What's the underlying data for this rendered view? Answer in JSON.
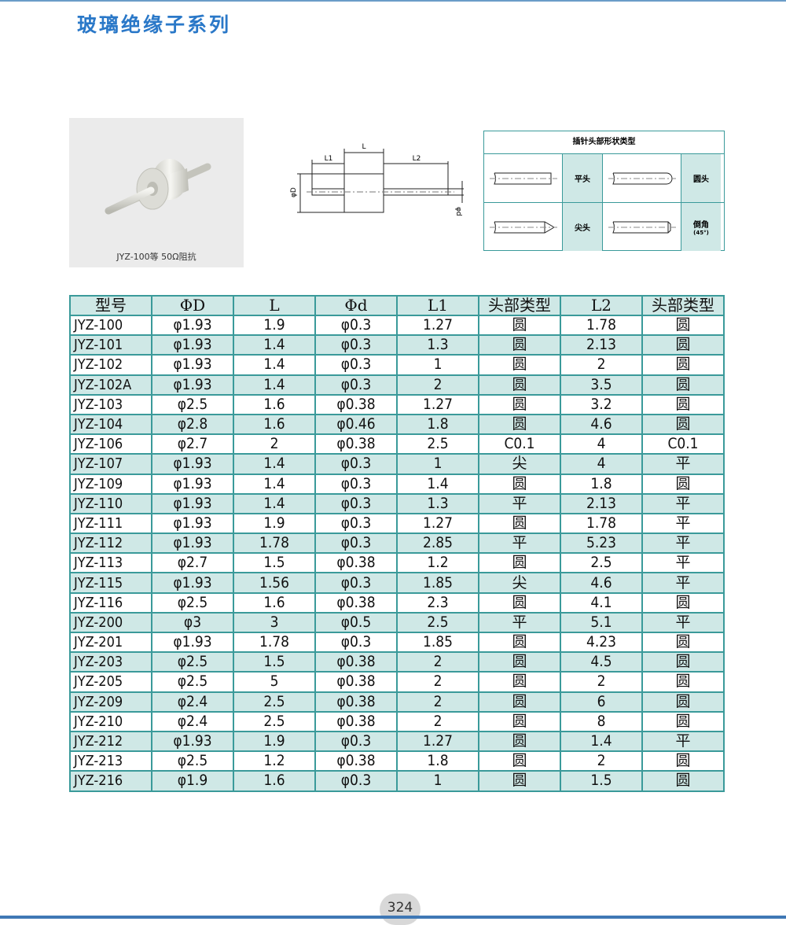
{
  "header": {
    "title": "玻璃绝缘子系列"
  },
  "photo": {
    "caption": "JYZ-100等  50Ω阻抗"
  },
  "dimension_diagram": {
    "labels": {
      "L": "L",
      "L1": "L1",
      "L2": "L2",
      "D": "φD",
      "d": "φd"
    }
  },
  "head_types": {
    "title": "插针头部形状类型",
    "types": [
      {
        "label": "平头",
        "icon": "flat-pin-icon"
      },
      {
        "label": "圆头",
        "icon": "round-pin-icon"
      },
      {
        "label": "尖头",
        "icon": "pointed-pin-icon"
      },
      {
        "label": "倒角",
        "sub": "(45°)",
        "icon": "chamfer-pin-icon"
      }
    ]
  },
  "table": {
    "headers": [
      "型号",
      "ΦD",
      "L",
      "Φd",
      "L1",
      "头部类型",
      "L2",
      "头部类型"
    ],
    "rows": [
      [
        "JYZ-100",
        "φ1.93",
        "1.9",
        "φ0.3",
        "1.27",
        "圆",
        "1.78",
        "圆"
      ],
      [
        "JYZ-101",
        "φ1.93",
        "1.4",
        "φ0.3",
        "1.3",
        "圆",
        "2.13",
        "圆"
      ],
      [
        "JYZ-102",
        "φ1.93",
        "1.4",
        "φ0.3",
        "1",
        "圆",
        "2",
        "圆"
      ],
      [
        "JYZ-102A",
        "φ1.93",
        "1.4",
        "φ0.3",
        "2",
        "圆",
        "3.5",
        "圆"
      ],
      [
        "JYZ-103",
        "φ2.5",
        "1.6",
        "φ0.38",
        "1.27",
        "圆",
        "3.2",
        "圆"
      ],
      [
        "JYZ-104",
        "φ2.8",
        "1.6",
        "φ0.46",
        "1.8",
        "圆",
        "4.6",
        "圆"
      ],
      [
        "JYZ-106",
        "φ2.7",
        "2",
        "φ0.38",
        "2.5",
        "C0.1",
        "4",
        "C0.1"
      ],
      [
        "JYZ-107",
        "φ1.93",
        "1.4",
        "φ0.3",
        "1",
        "尖",
        "4",
        "平"
      ],
      [
        "JYZ-109",
        "φ1.93",
        "1.4",
        "φ0.3",
        "1.4",
        "圆",
        "1.8",
        "圆"
      ],
      [
        "JYZ-110",
        "φ1.93",
        "1.4",
        "φ0.3",
        "1.3",
        "平",
        "2.13",
        "平"
      ],
      [
        "JYZ-111",
        "φ1.93",
        "1.9",
        "φ0.3",
        "1.27",
        "圆",
        "1.78",
        "平"
      ],
      [
        "JYZ-112",
        "φ1.93",
        "1.78",
        "φ0.3",
        "2.85",
        "平",
        "5.23",
        "平"
      ],
      [
        "JYZ-113",
        "φ2.7",
        "1.5",
        "φ0.38",
        "1.2",
        "圆",
        "2.5",
        "平"
      ],
      [
        "JYZ-115",
        "φ1.93",
        "1.56",
        "φ0.3",
        "1.85",
        "尖",
        "4.6",
        "平"
      ],
      [
        "JYZ-116",
        "φ2.5",
        "1.6",
        "φ0.38",
        "2.3",
        "圆",
        "4.1",
        "圆"
      ],
      [
        "JYZ-200",
        "φ3",
        "3",
        "φ0.5",
        "2.5",
        "平",
        "5.1",
        "平"
      ],
      [
        "JYZ-201",
        "φ1.93",
        "1.78",
        "φ0.3",
        "1.85",
        "圆",
        "4.23",
        "圆"
      ],
      [
        "JYZ-203",
        "φ2.5",
        "1.5",
        "φ0.38",
        "2",
        "圆",
        "4.5",
        "圆"
      ],
      [
        "JYZ-205",
        "φ2.5",
        "5",
        "φ0.38",
        "2",
        "圆",
        "2",
        "圆"
      ],
      [
        "JYZ-209",
        "φ2.4",
        "2.5",
        "φ0.38",
        "2",
        "圆",
        "6",
        "圆"
      ],
      [
        "JYZ-210",
        "φ2.4",
        "2.5",
        "φ0.38",
        "2",
        "圆",
        "8",
        "圆"
      ],
      [
        "JYZ-212",
        "φ1.93",
        "1.9",
        "φ0.3",
        "1.27",
        "圆",
        "1.4",
        "平"
      ],
      [
        "JYZ-213",
        "φ2.5",
        "1.2",
        "φ0.38",
        "1.8",
        "圆",
        "2",
        "圆"
      ],
      [
        "JYZ-216",
        "φ1.9",
        "1.6",
        "φ0.3",
        "1",
        "圆",
        "1.5",
        "圆"
      ]
    ]
  },
  "footer": {
    "page_number": "324"
  },
  "colors": {
    "title": "#2a78c8",
    "table_border": "#3a9a9a",
    "row_shade": "#cfe8e6"
  }
}
